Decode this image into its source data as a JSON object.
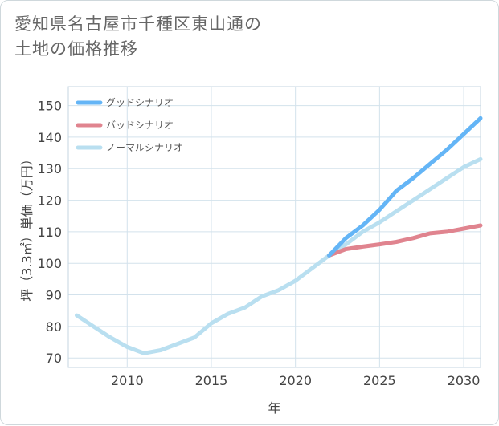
{
  "title_lines": [
    "愛知県名古屋市千種区東山通の",
    "土地の価格推移"
  ],
  "chart_data": {
    "type": "line",
    "xlabel": "年",
    "ylabel": "坪（3.3㎡）単価（万円）",
    "xlim": [
      2006.5,
      2031
    ],
    "ylim": [
      67,
      156
    ],
    "x_ticks": [
      2010,
      2015,
      2020,
      2025,
      2030
    ],
    "y_ticks": [
      70,
      80,
      90,
      100,
      110,
      120,
      130,
      140,
      150
    ],
    "grid": true,
    "legend_position": "top-left",
    "series": [
      {
        "name": "グッドシナリオ",
        "color": "#64b5f6",
        "x": [
          2022,
          2023,
          2024,
          2025,
          2026,
          2027,
          2028,
          2029,
          2030,
          2031
        ],
        "y": [
          102.5,
          108,
          112,
          117,
          123,
          127,
          131.5,
          136,
          141,
          146
        ]
      },
      {
        "name": "バッドシナリオ",
        "color": "#e0848f",
        "x": [
          2022,
          2023,
          2024,
          2025,
          2026,
          2027,
          2028,
          2029,
          2030,
          2031
        ],
        "y": [
          102.5,
          104.5,
          105.3,
          106,
          106.8,
          108,
          109.5,
          110,
          111,
          112
        ]
      },
      {
        "name": "ノーマルシナリオ",
        "color": "#b9dff0",
        "x": [
          2007,
          2008,
          2009,
          2010,
          2011,
          2012,
          2013,
          2014,
          2015,
          2016,
          2017,
          2018,
          2019,
          2020,
          2021,
          2022,
          2023,
          2024,
          2025,
          2026,
          2027,
          2028,
          2029,
          2030,
          2031
        ],
        "y": [
          83.5,
          80,
          76.5,
          73.5,
          71.5,
          72.5,
          74.5,
          76.5,
          81,
          84,
          86,
          89.5,
          91.5,
          94.5,
          98.5,
          102.5,
          106,
          110,
          113,
          116.5,
          120,
          123.5,
          127,
          130.5,
          133
        ]
      }
    ]
  }
}
